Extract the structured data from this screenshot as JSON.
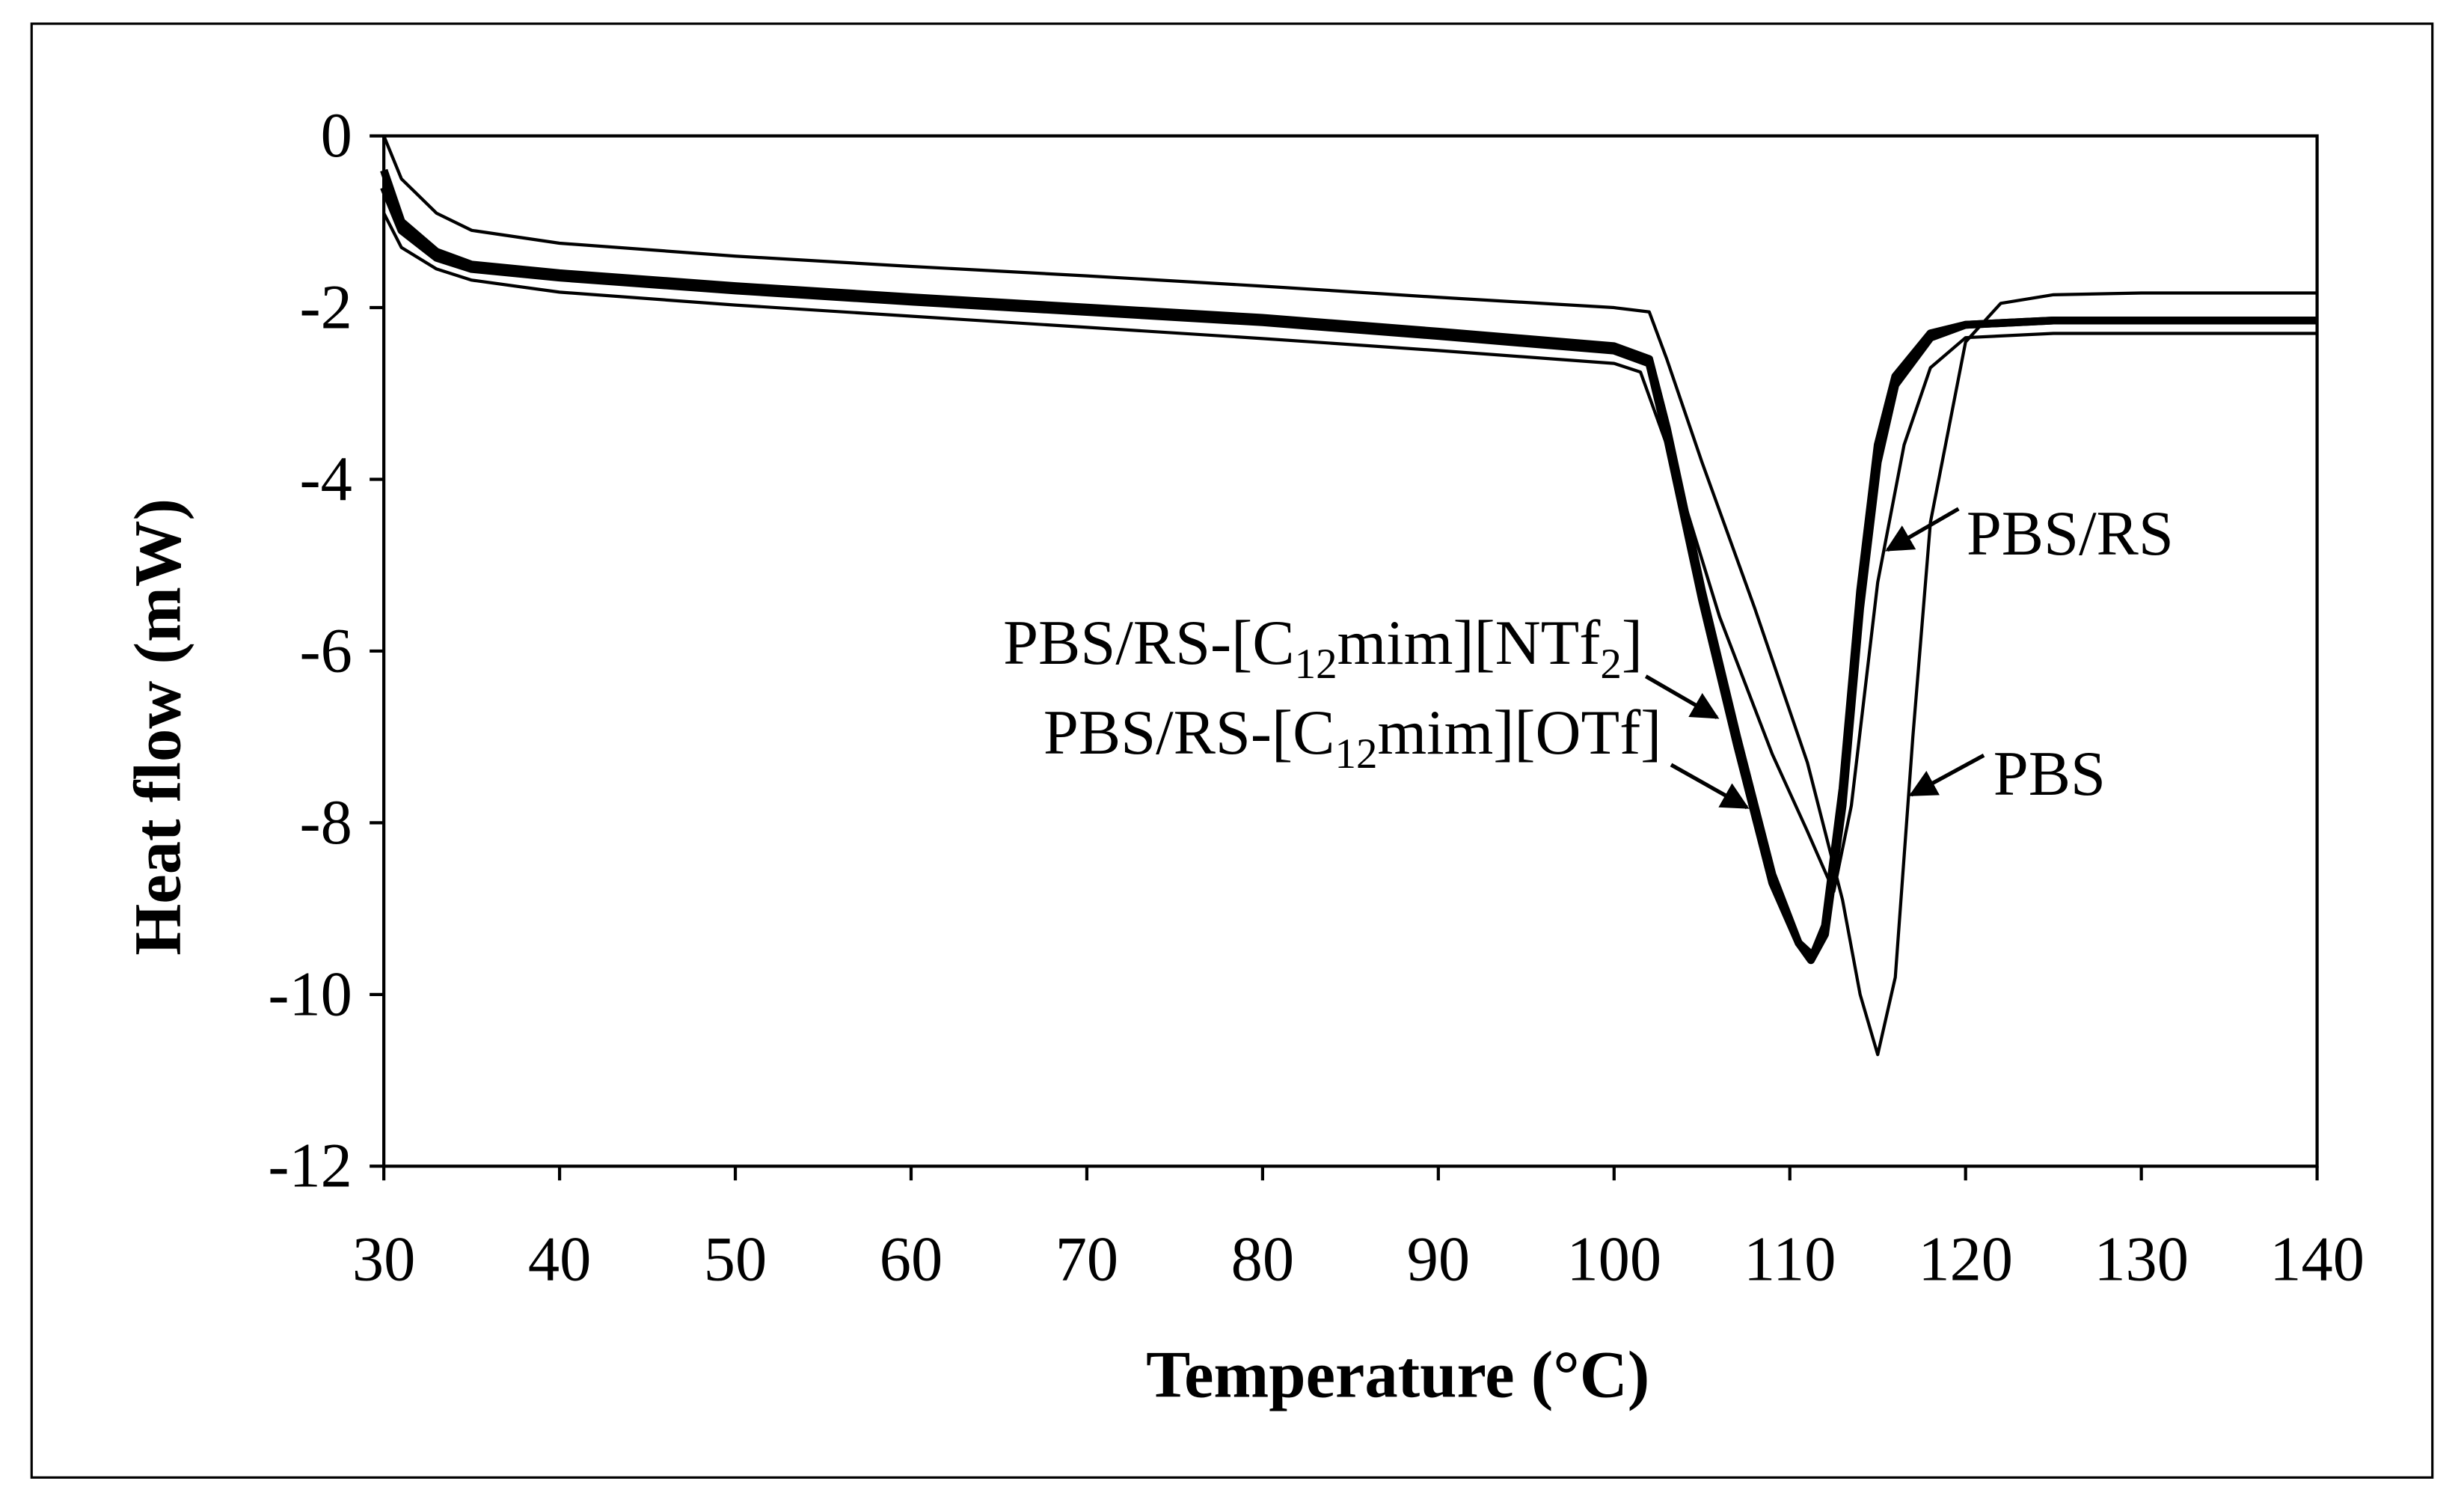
{
  "chart_data": {
    "type": "line",
    "xlabel": "Temperature (°C)",
    "ylabel": "Heat flow (mW)",
    "xlim": [
      30,
      140
    ],
    "xticks": [
      30,
      40,
      50,
      60,
      70,
      80,
      90,
      100,
      110,
      120,
      130,
      140
    ],
    "ylim": [
      -12,
      0
    ],
    "yticks": [
      0,
      -2,
      -4,
      -6,
      -8,
      -10,
      -12
    ],
    "series": [
      {
        "name": "PBS",
        "color": "#000000",
        "x": [
          30,
          31,
          33,
          35,
          40,
          50,
          60,
          70,
          80,
          90,
          100,
          102,
          103,
          105,
          108,
          111,
          113,
          114,
          115,
          116,
          117,
          118,
          120,
          122,
          125,
          130,
          140
        ],
        "values": [
          0,
          -0.5,
          -0.9,
          -1.1,
          -1.25,
          -1.4,
          -1.52,
          -1.63,
          -1.75,
          -1.88,
          -2.0,
          -2.05,
          -2.6,
          -3.8,
          -5.5,
          -7.3,
          -8.9,
          -10.0,
          -10.7,
          -9.8,
          -7.0,
          -4.5,
          -2.4,
          -1.95,
          -1.85,
          -1.83,
          -1.83
        ]
      },
      {
        "name": "PBS/RS",
        "color": "#000000",
        "x": [
          30,
          31,
          33,
          35,
          40,
          50,
          60,
          70,
          80,
          90,
          100,
          101.5,
          103,
          106,
          109,
          111,
          112.5,
          113.5,
          115,
          116.5,
          118,
          120,
          125,
          140
        ],
        "values": [
          -0.9,
          -1.3,
          -1.55,
          -1.68,
          -1.82,
          -1.97,
          -2.1,
          -2.23,
          -2.36,
          -2.5,
          -2.65,
          -2.75,
          -3.6,
          -5.6,
          -7.2,
          -8.1,
          -8.8,
          -7.8,
          -5.2,
          -3.6,
          -2.7,
          -2.35,
          -2.3,
          -2.3
        ]
      },
      {
        "name": "PBS/RS-[C12mim][NTf2]",
        "color": "#000000",
        "x": [
          30,
          31,
          33,
          35,
          40,
          50,
          60,
          70,
          80,
          90,
          100,
          102,
          103,
          105,
          107,
          109,
          110.5,
          111.2,
          112,
          113,
          114,
          115,
          116,
          118,
          120,
          125,
          140
        ],
        "values": [
          -0.4,
          -1.0,
          -1.35,
          -1.5,
          -1.6,
          -1.75,
          -1.88,
          -2.0,
          -2.12,
          -2.28,
          -2.45,
          -2.6,
          -3.4,
          -5.3,
          -7.0,
          -8.6,
          -9.4,
          -9.6,
          -9.3,
          -7.8,
          -5.5,
          -3.8,
          -2.9,
          -2.35,
          -2.2,
          -2.15,
          -2.15
        ]
      },
      {
        "name": "PBS/RS-[C12mim][OTf]",
        "color": "#000000",
        "x": [
          30,
          31,
          33,
          35,
          40,
          50,
          60,
          70,
          80,
          90,
          100,
          102,
          103,
          105,
          107,
          109,
          110.5,
          111.3,
          112,
          113,
          114,
          115,
          116,
          118,
          120,
          125,
          140
        ],
        "values": [
          -0.6,
          -1.1,
          -1.42,
          -1.55,
          -1.65,
          -1.8,
          -1.93,
          -2.05,
          -2.17,
          -2.33,
          -2.5,
          -2.65,
          -3.5,
          -5.4,
          -7.1,
          -8.7,
          -9.4,
          -9.55,
          -9.2,
          -7.6,
          -5.3,
          -3.6,
          -2.8,
          -2.3,
          -2.2,
          -2.15,
          -2.15
        ]
      }
    ],
    "annotations": [
      {
        "parts": [
          "PBS/RS"
        ]
      },
      {
        "parts": [
          "PBS"
        ]
      },
      {
        "parts": [
          "PBS/RS-[C",
          "12",
          "mim][NTf",
          "2",
          "]"
        ]
      },
      {
        "parts": [
          "PBS/RS-[C",
          "12",
          "mim][OTf]"
        ]
      }
    ]
  }
}
